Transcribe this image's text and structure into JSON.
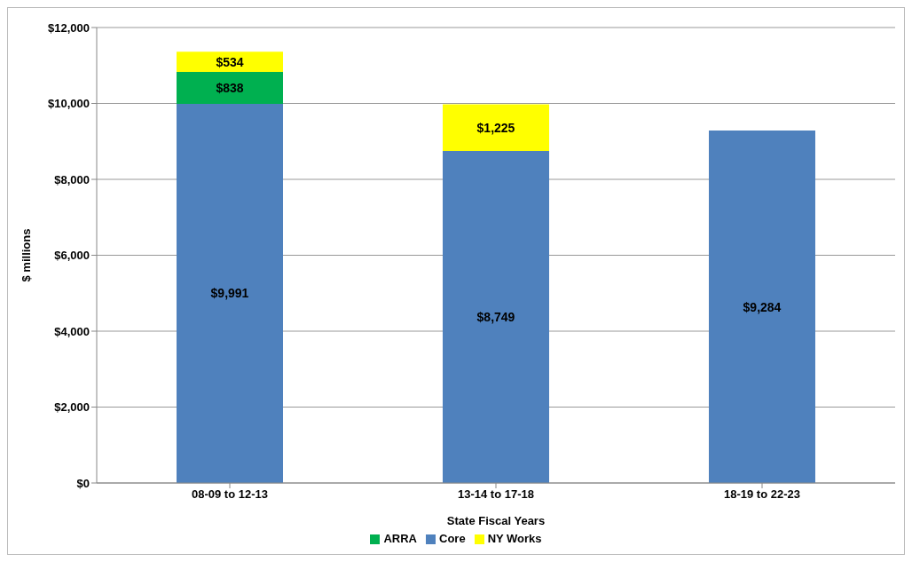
{
  "chart_data": {
    "type": "bar",
    "stacked": true,
    "xlabel": "State Fiscal Years",
    "ylabel": "$ millions",
    "categories": [
      "08-09 to 12-13",
      "13-14 to 17-18",
      "18-19 to 22-23"
    ],
    "series": [
      {
        "name": "Core",
        "color": "#4f81bd",
        "values": [
          9991,
          8749,
          9284
        ],
        "value_labels": [
          "$9,991",
          "$8,749",
          "$9,284"
        ]
      },
      {
        "name": "ARRA",
        "color": "#00b050",
        "values": [
          838,
          null,
          null
        ],
        "value_labels": [
          "$838",
          null,
          null
        ]
      },
      {
        "name": "NY Works",
        "color": "#ffff00",
        "values": [
          534,
          1225,
          null
        ],
        "value_labels": [
          "$534",
          "$1,225",
          null
        ]
      }
    ],
    "ylim": [
      0,
      12000
    ],
    "yticks": [
      {
        "value": 0,
        "label": "$0"
      },
      {
        "value": 2000,
        "label": "$2,000"
      },
      {
        "value": 4000,
        "label": "$4,000"
      },
      {
        "value": 6000,
        "label": "$6,000"
      },
      {
        "value": 8000,
        "label": "$8,000"
      },
      {
        "value": 10000,
        "label": "$10,000"
      },
      {
        "value": 12000,
        "label": "$12,000"
      }
    ],
    "grid": "y",
    "legend": "bottom"
  }
}
